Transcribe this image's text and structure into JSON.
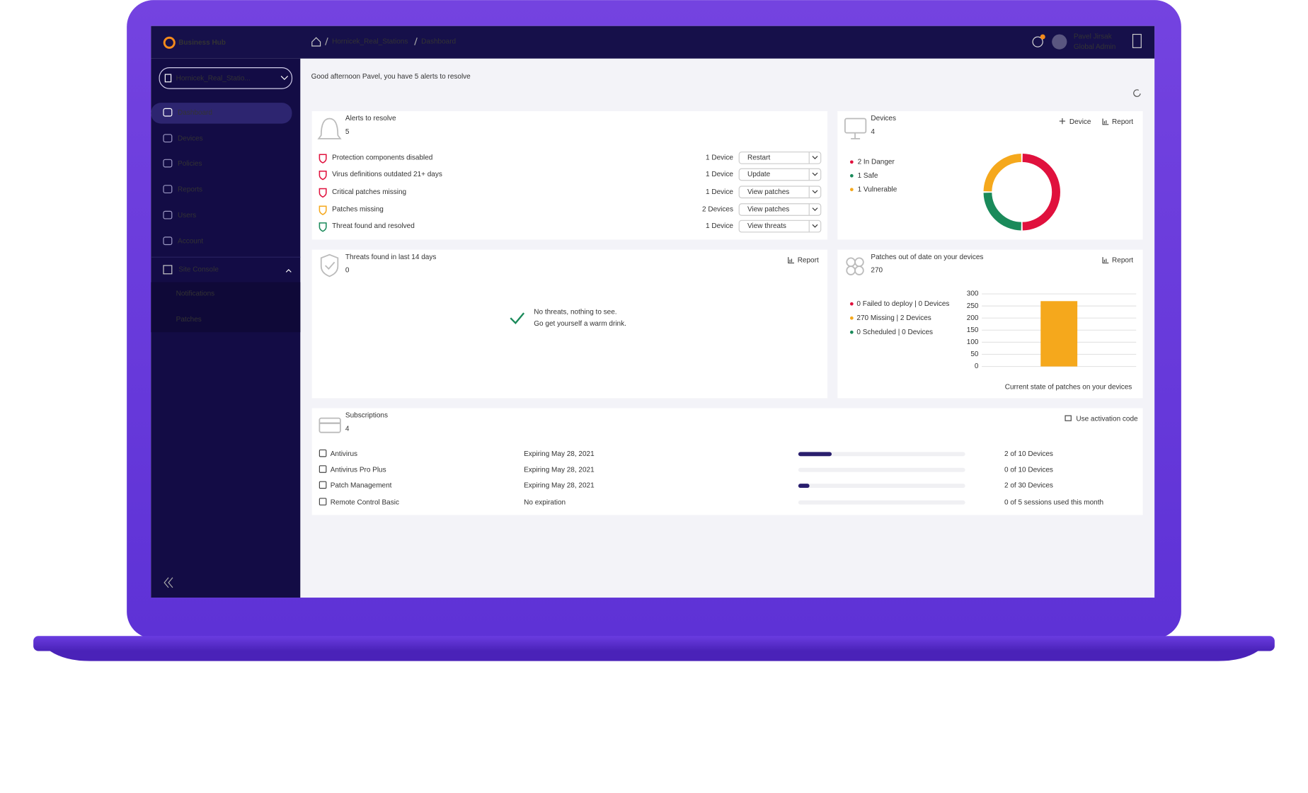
{
  "topbar": {
    "brand": "Business Hub",
    "breadcrumb": [
      "Hornicek_Real_Stations",
      "Dashboard"
    ],
    "user_name": "Pavel Jirsak",
    "user_role": "Global Admin"
  },
  "sidebar": {
    "site": "Hornicek_Real_Statio...",
    "items": [
      "Dashboard",
      "Devices",
      "Policies",
      "Reports",
      "Users",
      "Account"
    ],
    "console": "Site Console",
    "console_items": [
      "Notifications",
      "Patches"
    ]
  },
  "greeting": "Good afternoon Pavel, you have 5 alerts to resolve",
  "alerts": {
    "label": "Alerts to resolve",
    "count": 5,
    "rows": [
      {
        "color": "#e0113d",
        "text": "Protection components disabled",
        "devices": "1 Device",
        "action": "Restart"
      },
      {
        "color": "#e0113d",
        "text": "Virus definitions outdated 21+ days",
        "devices": "1 Device",
        "action": "Update"
      },
      {
        "color": "#e0113d",
        "text": "Critical patches missing",
        "devices": "1 Device",
        "action": "View patches"
      },
      {
        "color": "#f5a81c",
        "text": "Patches missing",
        "devices": "2 Devices",
        "action": "View patches"
      },
      {
        "color": "#1a8a5a",
        "text": "Threat found and resolved",
        "devices": "1 Device",
        "action": "View threats"
      }
    ]
  },
  "devices": {
    "label": "Devices",
    "count": 4,
    "actions": [
      "Device",
      "Report"
    ]
  },
  "threats": {
    "label": "Threats found in last 14 days",
    "count": 0,
    "action": "Report",
    "message": [
      "No threats, nothing to see.",
      "Go get yourself a warm drink."
    ]
  },
  "patches": {
    "label": "Patches out of date on your devices",
    "count": 270,
    "action": "Report"
  },
  "chart_data": [
    {
      "type": "donut",
      "labels": [
        "2 In Danger",
        "1 Safe",
        "1 Vulnerable"
      ],
      "values": [
        2,
        1,
        1
      ],
      "colors": [
        "#e0113d",
        "#1a8a5a",
        "#f5a81c"
      ]
    },
    {
      "type": "bar",
      "categories": [
        null,
        null,
        null
      ],
      "values": [
        0,
        270,
        0
      ],
      "colors": [
        "#e0113d",
        "#f5a81c",
        "#1a8a5a"
      ],
      "labels": [
        "0 Failed to deploy | 0 Devices",
        "270 Missing | 2 Devices",
        "0 Scheduled | 0 Devices"
      ],
      "ylim": [
        0,
        300
      ],
      "yticks": [
        0,
        50,
        100,
        150,
        200,
        250,
        300
      ],
      "grid": true,
      "caption": "Current state of patches on your devices"
    }
  ],
  "subscriptions": {
    "label": "Subscriptions",
    "count": 4,
    "action": "Use activation code",
    "rows": [
      {
        "name": "Antivirus",
        "expiry": "Expiring May 28, 2021",
        "used": 2,
        "total": 10,
        "usage": "2 of 10 Devices"
      },
      {
        "name": "Antivirus Pro Plus",
        "expiry": "Expiring May 28, 2021",
        "used": 0,
        "total": 10,
        "usage": "0 of 10 Devices"
      },
      {
        "name": "Patch Management",
        "expiry": "Expiring May 28, 2021",
        "used": 2,
        "total": 30,
        "usage": "2 of 30 Devices"
      },
      {
        "name": "Remote Control Basic",
        "expiry": "No expiration",
        "used": 0,
        "total": 5,
        "usage": "0 of 5 sessions used this month"
      }
    ]
  }
}
